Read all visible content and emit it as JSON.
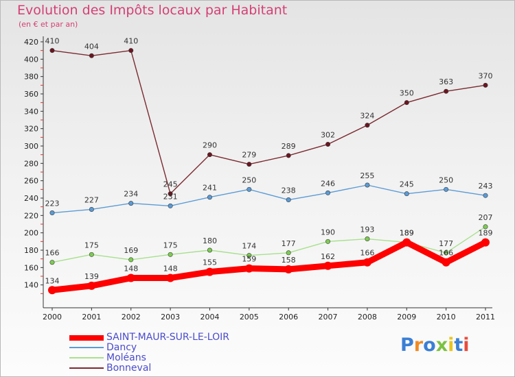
{
  "header": {
    "title": "Evolution des Impôts locaux par Habitant",
    "subtitle": "(en € et par an)"
  },
  "brand": {
    "letters": [
      "P",
      "r",
      "o",
      "x",
      "i",
      "t",
      "i"
    ],
    "colors": [
      "#3b7fd4",
      "#f08a24",
      "#3b7fd4",
      "#7cc242",
      "#e8c520",
      "#3b7fd4",
      "#e84c3d"
    ]
  },
  "chart_data": {
    "type": "line",
    "title": "Evolution des Impôts locaux par Habitant",
    "subtitle": "(en € et par an)",
    "x": [
      2000,
      2001,
      2002,
      2003,
      2004,
      2005,
      2006,
      2007,
      2008,
      2009,
      2010,
      2011
    ],
    "ylim": [
      120,
      420
    ],
    "yticks": [
      140,
      160,
      180,
      200,
      220,
      240,
      260,
      280,
      300,
      320,
      340,
      360,
      380,
      400,
      420
    ],
    "grid": false,
    "legend_position": "bottom",
    "series": [
      {
        "name": "SAINT-MAUR-SUR-LE-LOIR",
        "values": [
          134,
          139,
          148,
          148,
          155,
          159,
          158,
          162,
          166,
          189,
          166,
          189
        ],
        "color": "#ff0000",
        "line_color": "#ff0000",
        "width": "thick"
      },
      {
        "name": "Dancy",
        "values": [
          223,
          227,
          234,
          231,
          241,
          250,
          238,
          246,
          255,
          245,
          250,
          243
        ],
        "color": "#5b9bd5",
        "line_color": "#5b9bd5",
        "width": "thin"
      },
      {
        "name": "Moléans",
        "values": [
          166,
          175,
          169,
          175,
          180,
          174,
          177,
          190,
          193,
          189,
          177,
          207
        ],
        "color": "#7dcc52",
        "line_color": "#a8e08c",
        "width": "thin"
      },
      {
        "name": "Bonneval",
        "values": [
          410,
          404,
          410,
          245,
          290,
          279,
          289,
          302,
          324,
          350,
          363,
          370
        ],
        "color": "#6b1520",
        "line_color": "#7a2a30",
        "width": "thin"
      }
    ]
  }
}
